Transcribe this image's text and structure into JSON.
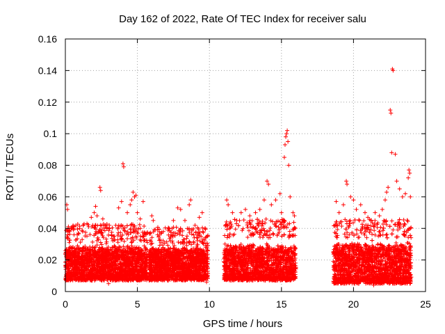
{
  "chart_data": {
    "type": "scatter",
    "title": "Day 162 of 2022, Rate Of TEC Index for receiver salu",
    "xlabel": "GPS time / hours",
    "ylabel": "ROTI / TECUs",
    "xlim": [
      0,
      25
    ],
    "ylim": [
      0,
      0.16
    ],
    "xticks": [
      0,
      5,
      10,
      15,
      20,
      25
    ],
    "xtick_labels": [
      "0",
      "5",
      "10",
      "15",
      "20",
      "25"
    ],
    "yticks": [
      0,
      0.02,
      0.04,
      0.06,
      0.08,
      0.1,
      0.12,
      0.14,
      0.16
    ],
    "ytick_labels": [
      "0",
      "0.02",
      "0.04",
      "0.06",
      "0.08",
      "0.1",
      "0.12",
      "0.14",
      "0.16"
    ],
    "grid": true,
    "marker": "+",
    "color": "#ff0000",
    "data_segments": [
      {
        "x_start": 0.0,
        "x_end": 5.7,
        "y_min": 0.007,
        "y_typical_max": 0.035
      },
      {
        "x_start": 5.8,
        "x_end": 9.9,
        "y_min": 0.007,
        "y_typical_max": 0.033
      },
      {
        "x_start": 11.0,
        "x_end": 16.0,
        "y_min": 0.007,
        "y_typical_max": 0.038
      },
      {
        "x_start": 18.6,
        "x_end": 24.0,
        "y_min": 0.005,
        "y_typical_max": 0.038
      }
    ],
    "series": [
      {
        "name": "ROTI",
        "points": [
          [
            0.1,
            0.055
          ],
          [
            0.15,
            0.052
          ],
          [
            0.3,
            0.038
          ],
          [
            0.6,
            0.036
          ],
          [
            0.9,
            0.037
          ],
          [
            1.2,
            0.038
          ],
          [
            1.5,
            0.043
          ],
          [
            1.8,
            0.047
          ],
          [
            2.0,
            0.05
          ],
          [
            2.1,
            0.054
          ],
          [
            2.2,
            0.048
          ],
          [
            2.4,
            0.066
          ],
          [
            2.45,
            0.064
          ],
          [
            2.6,
            0.046
          ],
          [
            2.9,
            0.04
          ],
          [
            3.2,
            0.036
          ],
          [
            3.5,
            0.042
          ],
          [
            3.7,
            0.053
          ],
          [
            3.9,
            0.057
          ],
          [
            4.0,
            0.081
          ],
          [
            4.05,
            0.079
          ],
          [
            4.3,
            0.05
          ],
          [
            4.5,
            0.055
          ],
          [
            4.6,
            0.058
          ],
          [
            4.7,
            0.063
          ],
          [
            4.8,
            0.06
          ],
          [
            4.9,
            0.061
          ],
          [
            5.0,
            0.05
          ],
          [
            5.2,
            0.046
          ],
          [
            5.4,
            0.057
          ],
          [
            5.6,
            0.036
          ],
          [
            6.0,
            0.048
          ],
          [
            6.1,
            0.045
          ],
          [
            6.4,
            0.036
          ],
          [
            6.8,
            0.038
          ],
          [
            7.2,
            0.04
          ],
          [
            7.5,
            0.045
          ],
          [
            7.8,
            0.053
          ],
          [
            8.0,
            0.052
          ],
          [
            8.3,
            0.045
          ],
          [
            8.6,
            0.055
          ],
          [
            8.7,
            0.058
          ],
          [
            9.0,
            0.042
          ],
          [
            9.3,
            0.047
          ],
          [
            9.5,
            0.05
          ],
          [
            9.7,
            0.04
          ],
          [
            11.2,
            0.058
          ],
          [
            11.3,
            0.055
          ],
          [
            11.6,
            0.05
          ],
          [
            11.9,
            0.045
          ],
          [
            12.2,
            0.05
          ],
          [
            12.5,
            0.052
          ],
          [
            12.8,
            0.048
          ],
          [
            13.2,
            0.05
          ],
          [
            13.5,
            0.052
          ],
          [
            13.8,
            0.058
          ],
          [
            14.0,
            0.07
          ],
          [
            14.1,
            0.068
          ],
          [
            14.3,
            0.055
          ],
          [
            14.6,
            0.058
          ],
          [
            14.9,
            0.062
          ],
          [
            15.0,
            0.05
          ],
          [
            15.2,
            0.085
          ],
          [
            15.25,
            0.093
          ],
          [
            15.3,
            0.098
          ],
          [
            15.35,
            0.1
          ],
          [
            15.4,
            0.102
          ],
          [
            15.45,
            0.095
          ],
          [
            15.5,
            0.08
          ],
          [
            15.6,
            0.06
          ],
          [
            15.8,
            0.05
          ],
          [
            15.9,
            0.048
          ],
          [
            18.8,
            0.057
          ],
          [
            19.0,
            0.05
          ],
          [
            19.3,
            0.055
          ],
          [
            19.5,
            0.07
          ],
          [
            19.55,
            0.068
          ],
          [
            19.8,
            0.06
          ],
          [
            20.0,
            0.058
          ],
          [
            20.2,
            0.052
          ],
          [
            20.5,
            0.055
          ],
          [
            20.8,
            0.05
          ],
          [
            21.0,
            0.047
          ],
          [
            21.2,
            0.045
          ],
          [
            21.5,
            0.05
          ],
          [
            21.8,
            0.048
          ],
          [
            22.0,
            0.052
          ],
          [
            22.2,
            0.058
          ],
          [
            22.3,
            0.063
          ],
          [
            22.4,
            0.066
          ],
          [
            22.55,
            0.115
          ],
          [
            22.6,
            0.113
          ],
          [
            22.65,
            0.088
          ],
          [
            22.7,
            0.141
          ],
          [
            22.75,
            0.14
          ],
          [
            22.9,
            0.087
          ],
          [
            23.0,
            0.07
          ],
          [
            23.2,
            0.065
          ],
          [
            23.4,
            0.06
          ],
          [
            23.6,
            0.062
          ],
          [
            23.8,
            0.072
          ],
          [
            23.85,
            0.077
          ],
          [
            23.9,
            0.075
          ],
          [
            23.95,
            0.06
          ],
          [
            3.0,
            0.005
          ],
          [
            21.4,
            0.004
          ],
          [
            9.8,
            0.006
          ]
        ]
      }
    ]
  }
}
